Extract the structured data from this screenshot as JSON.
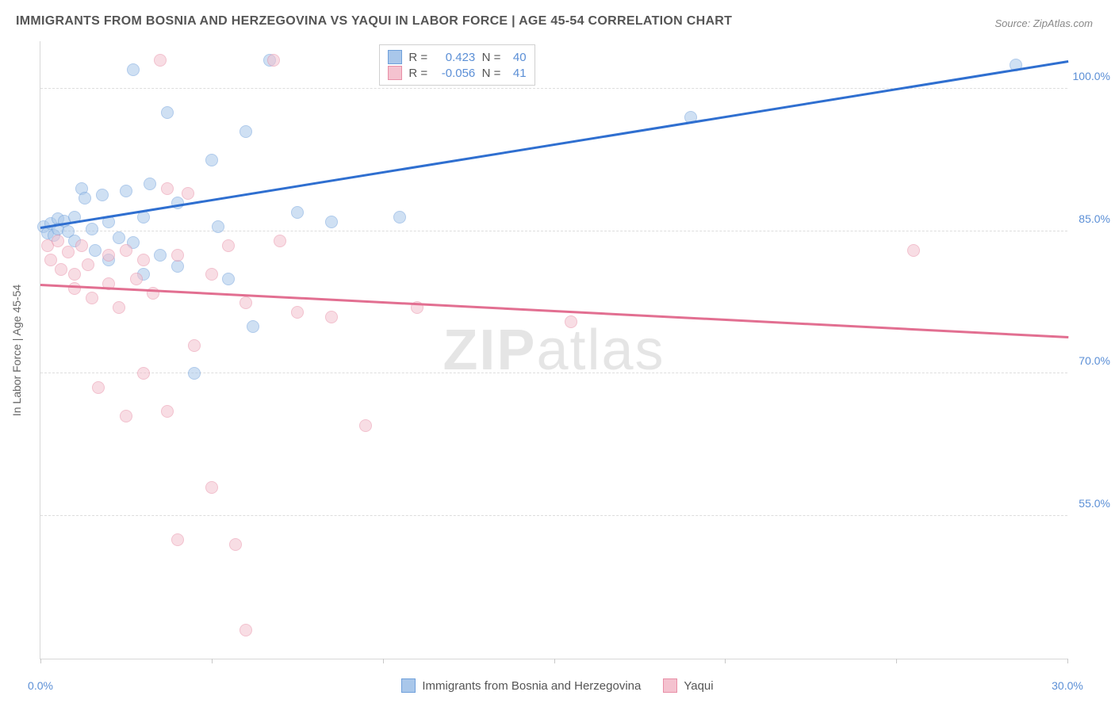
{
  "title": "IMMIGRANTS FROM BOSNIA AND HERZEGOVINA VS YAQUI IN LABOR FORCE | AGE 45-54 CORRELATION CHART",
  "source": "Source: ZipAtlas.com",
  "watermark_bold": "ZIP",
  "watermark_thin": "atlas",
  "chart": {
    "type": "scatter",
    "xlim": [
      0,
      30
    ],
    "ylim": [
      40,
      105
    ],
    "x_ticks": [
      0,
      5,
      10,
      15,
      20,
      25,
      30
    ],
    "x_tick_labels": {
      "0": "0.0%",
      "30": "30.0%"
    },
    "y_gridlines": [
      55,
      70,
      85,
      100
    ],
    "y_tick_labels": {
      "55": "55.0%",
      "70": "70.0%",
      "85": "85.0%",
      "100": "100.0%"
    },
    "y_axis_label": "In Labor Force | Age 45-54",
    "background_color": "#ffffff",
    "grid_color": "#dddddd",
    "axis_color": "#d8d8d8",
    "tick_label_color": "#5b8fd6",
    "point_radius": 8,
    "line_width": 2.5,
    "series": [
      {
        "name": "Immigrants from Bosnia and Herzegovina",
        "fill_color": "#a9c7ea",
        "stroke_color": "#6fa0db",
        "line_color": "#2f6fd0",
        "fill_opacity": 0.55,
        "R": "0.423",
        "N": "40",
        "trend": {
          "x1": 0,
          "y1": 85.5,
          "x2": 30,
          "y2": 103
        },
        "points": [
          [
            0.1,
            85.5
          ],
          [
            0.2,
            84.8
          ],
          [
            0.3,
            85.8
          ],
          [
            0.4,
            84.6
          ],
          [
            0.5,
            86.3
          ],
          [
            0.5,
            85.2
          ],
          [
            0.7,
            86.1
          ],
          [
            0.8,
            85.0
          ],
          [
            1.0,
            86.5
          ],
          [
            1.0,
            84.0
          ],
          [
            1.2,
            89.5
          ],
          [
            1.3,
            88.5
          ],
          [
            1.5,
            85.2
          ],
          [
            1.6,
            83.0
          ],
          [
            1.8,
            88.8
          ],
          [
            2.0,
            86.0
          ],
          [
            2.0,
            82.0
          ],
          [
            2.3,
            84.3
          ],
          [
            2.5,
            89.2
          ],
          [
            2.7,
            83.8
          ],
          [
            2.7,
            102.0
          ],
          [
            3.0,
            86.5
          ],
          [
            3.0,
            80.5
          ],
          [
            3.2,
            90.0
          ],
          [
            3.5,
            82.5
          ],
          [
            3.7,
            97.5
          ],
          [
            4.0,
            88.0
          ],
          [
            4.0,
            81.3
          ],
          [
            4.5,
            70.0
          ],
          [
            5.0,
            92.5
          ],
          [
            5.2,
            85.5
          ],
          [
            5.5,
            80.0
          ],
          [
            6.0,
            95.5
          ],
          [
            6.2,
            75.0
          ],
          [
            6.7,
            103.0
          ],
          [
            7.5,
            87.0
          ],
          [
            8.5,
            86.0
          ],
          [
            10.5,
            86.5
          ],
          [
            19.0,
            97.0
          ],
          [
            28.5,
            102.5
          ]
        ]
      },
      {
        "name": "Yaqui",
        "fill_color": "#f4c2cf",
        "stroke_color": "#e88fa7",
        "line_color": "#e26f91",
        "fill_opacity": 0.55,
        "R": "-0.056",
        "N": "41",
        "trend": {
          "x1": 0,
          "y1": 79.5,
          "x2": 30,
          "y2": 74.0
        },
        "points": [
          [
            0.2,
            83.5
          ],
          [
            0.3,
            82.0
          ],
          [
            0.5,
            84.0
          ],
          [
            0.6,
            81.0
          ],
          [
            0.8,
            82.8
          ],
          [
            1.0,
            80.5
          ],
          [
            1.0,
            79.0
          ],
          [
            1.2,
            83.5
          ],
          [
            1.4,
            81.5
          ],
          [
            1.5,
            78.0
          ],
          [
            1.7,
            68.5
          ],
          [
            2.0,
            82.5
          ],
          [
            2.0,
            79.5
          ],
          [
            2.3,
            77.0
          ],
          [
            2.5,
            83.0
          ],
          [
            2.5,
            65.5
          ],
          [
            2.8,
            80.0
          ],
          [
            3.0,
            82.0
          ],
          [
            3.0,
            70.0
          ],
          [
            3.3,
            78.5
          ],
          [
            3.5,
            103.0
          ],
          [
            3.7,
            66.0
          ],
          [
            3.7,
            89.5
          ],
          [
            4.0,
            82.5
          ],
          [
            4.0,
            52.5
          ],
          [
            4.3,
            89.0
          ],
          [
            4.5,
            73.0
          ],
          [
            5.0,
            80.5
          ],
          [
            5.0,
            58.0
          ],
          [
            5.5,
            83.5
          ],
          [
            5.7,
            52.0
          ],
          [
            6.0,
            77.5
          ],
          [
            6.0,
            43.0
          ],
          [
            6.8,
            103.0
          ],
          [
            7.0,
            84.0
          ],
          [
            7.5,
            76.5
          ],
          [
            8.5,
            76.0
          ],
          [
            9.5,
            64.5
          ],
          [
            11.0,
            77.0
          ],
          [
            15.5,
            75.5
          ],
          [
            25.5,
            83.0
          ]
        ]
      }
    ]
  },
  "legend_top_prefix_R": "R =",
  "legend_top_prefix_N": "N ="
}
